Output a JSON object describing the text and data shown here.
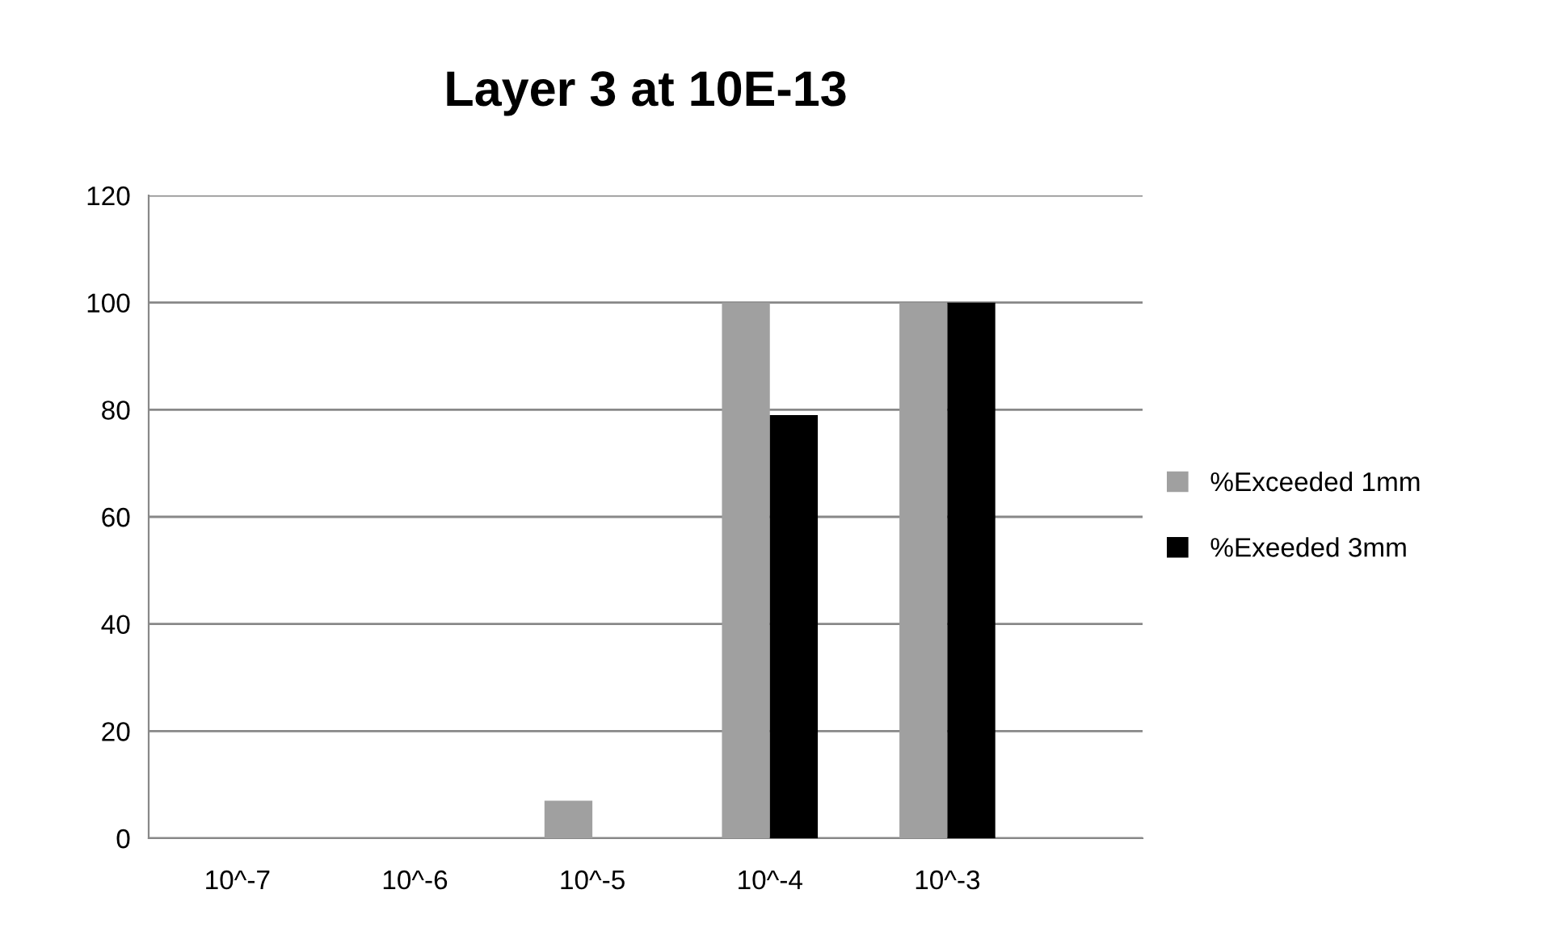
{
  "chart_data": {
    "type": "bar",
    "title": "Layer 3 at 10E-13",
    "categories": [
      "10^-7",
      "10^-6",
      "10^-5",
      "10^-4",
      "10^-3"
    ],
    "series": [
      {
        "name": "%Exceeded 1mm",
        "color": "#a0a0a0",
        "values": [
          0,
          0,
          7,
          100,
          100
        ]
      },
      {
        "name": "%Exeeded 3mm",
        "color": "#000000",
        "values": [
          0,
          0,
          0,
          79,
          100
        ]
      }
    ],
    "ylim": [
      0,
      120
    ],
    "yticks": [
      0,
      20,
      40,
      60,
      80,
      100,
      120
    ],
    "grid": "y",
    "legend": "right"
  }
}
